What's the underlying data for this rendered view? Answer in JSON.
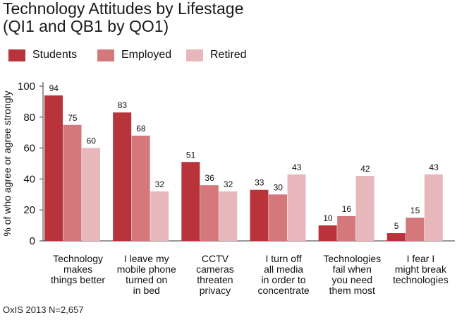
{
  "title_line1": "Technology Attitudes by Lifestage",
  "title_line2": "(QI1 and QB1 by QO1)",
  "footer": "OxIS 2013 N=2,657",
  "colors": {
    "Students": "#b8333a",
    "Employed": "#d4787b",
    "Retired": "#e8b7bb"
  },
  "chart_data": {
    "type": "bar",
    "categories": [
      [
        "Technology",
        "makes",
        "things better"
      ],
      [
        "I leave my",
        "mobile phone",
        "turned on",
        "in bed"
      ],
      [
        "CCTV",
        "cameras",
        "threaten",
        "privacy"
      ],
      [
        "I turn off",
        "all media",
        "in order to",
        "concentrate"
      ],
      [
        "Technologies",
        "fail when",
        "you need",
        "them most"
      ],
      [
        "I fear I",
        "might break",
        "technologies"
      ]
    ],
    "series": [
      {
        "name": "Students",
        "values": [
          94,
          83,
          51,
          33,
          10,
          5
        ]
      },
      {
        "name": "Employed",
        "values": [
          75,
          68,
          36,
          30,
          16,
          15
        ]
      },
      {
        "name": "Retired",
        "values": [
          60,
          32,
          32,
          43,
          42,
          43
        ]
      }
    ],
    "ylabel": "% of who agree or agree strongly",
    "xlabel": "",
    "ylim": [
      0,
      100
    ],
    "yticks": [
      0,
      20,
      40,
      60,
      80,
      100
    ],
    "grid": false,
    "legend_position": "top-left"
  }
}
